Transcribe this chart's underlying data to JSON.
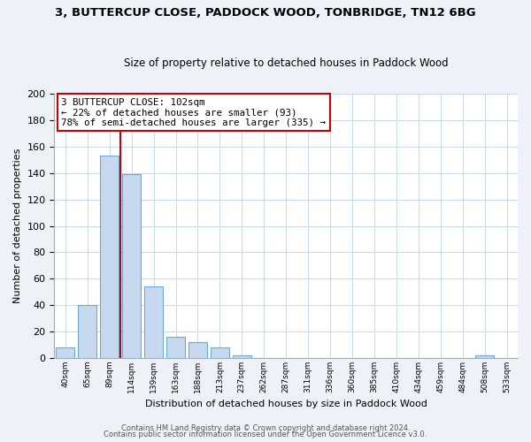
{
  "title_line1": "3, BUTTERCUP CLOSE, PADDOCK WOOD, TONBRIDGE, TN12 6BG",
  "title_line2": "Size of property relative to detached houses in Paddock Wood",
  "xlabel": "Distribution of detached houses by size in Paddock Wood",
  "ylabel": "Number of detached properties",
  "bar_labels": [
    "40sqm",
    "65sqm",
    "89sqm",
    "114sqm",
    "139sqm",
    "163sqm",
    "188sqm",
    "213sqm",
    "237sqm",
    "262sqm",
    "287sqm",
    "311sqm",
    "336sqm",
    "360sqm",
    "385sqm",
    "410sqm",
    "434sqm",
    "459sqm",
    "484sqm",
    "508sqm",
    "533sqm"
  ],
  "bar_values": [
    8,
    40,
    153,
    139,
    54,
    16,
    12,
    8,
    2,
    0,
    0,
    0,
    0,
    0,
    0,
    0,
    0,
    0,
    0,
    2,
    0
  ],
  "bar_color": "#c6d9ef",
  "bar_edge_color": "#6aaad4",
  "ylim": [
    0,
    200
  ],
  "yticks": [
    0,
    20,
    40,
    60,
    80,
    100,
    120,
    140,
    160,
    180,
    200
  ],
  "vline_x": 2.5,
  "vline_color": "#cc0000",
  "annotation_line1": "3 BUTTERCUP CLOSE: 102sqm",
  "annotation_line2": "← 22% of detached houses are smaller (93)",
  "annotation_line3": "78% of semi-detached houses are larger (335) →",
  "footer_line1": "Contains HM Land Registry data © Crown copyright and database right 2024.",
  "footer_line2": "Contains public sector information licensed under the Open Government Licence v3.0.",
  "bg_color": "#eef2f8",
  "plot_bg_color": "#ffffff",
  "grid_color": "#c8d8ec"
}
